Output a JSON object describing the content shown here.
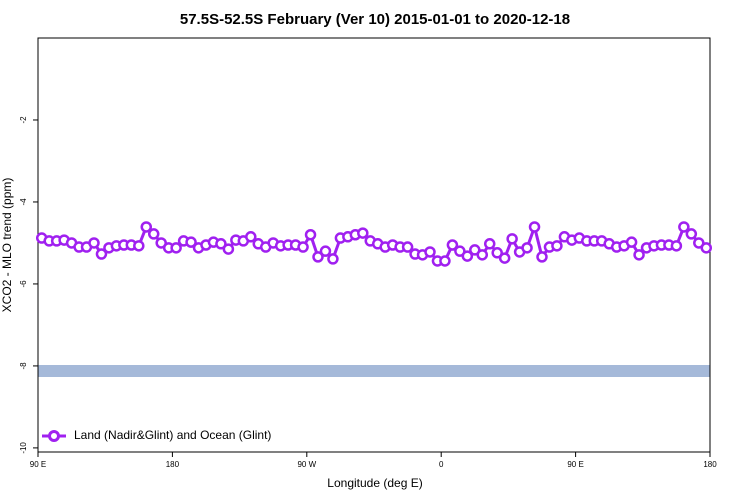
{
  "chart_data": {
    "type": "line",
    "title": "57.5S-52.5S February (Ver 10)   2015-01-01 to 2020-12-18",
    "x_label": "Longitude (deg E)",
    "y_label": "XCO2 - MLO trend (ppm)",
    "xlim": [
      90,
      540
    ],
    "xticks": [
      {
        "value": 90,
        "label": "90 E"
      },
      {
        "value": 180,
        "label": "180"
      },
      {
        "value": 270,
        "label": "90 W"
      },
      {
        "value": 360,
        "label": "0"
      },
      {
        "value": 450,
        "label": "90 E"
      },
      {
        "value": 540,
        "label": "180"
      }
    ],
    "ylim": [
      -10.1,
      0
    ],
    "yticks": [
      -10,
      -8,
      -6,
      -4,
      -2
    ],
    "legend": "bottom-left",
    "x": [
      92.5,
      97.5,
      102.5,
      107.5,
      112.5,
      117.5,
      122.5,
      127.5,
      132.5,
      137.5,
      142.5,
      147.5,
      152.5,
      157.5,
      162.5,
      167.5,
      172.5,
      177.5,
      182.5,
      187.5,
      192.5,
      197.5,
      202.5,
      207.5,
      212.5,
      217.5,
      222.5,
      227.5,
      232.5,
      237.5,
      242.5,
      247.5,
      252.5,
      257.5,
      262.5,
      267.5,
      272.5,
      277.5,
      282.5,
      287.5,
      292.5,
      297.5,
      302.5,
      307.5,
      312.5,
      317.5,
      322.5,
      327.5,
      332.5,
      337.5,
      342.5,
      347.5,
      352.5,
      357.5,
      362.5,
      367.5,
      372.5,
      377.5,
      382.5,
      387.5,
      392.5,
      397.5,
      402.5,
      407.5,
      412.5,
      417.5,
      422.5,
      427.5,
      432.5,
      437.5,
      442.5,
      447.5,
      452.5,
      457.5,
      462.5,
      467.5,
      472.5,
      477.5,
      482.5,
      487.5,
      492.5,
      497.5,
      502.5,
      507.5,
      512.5,
      517.5,
      522.5,
      527.5,
      532.5,
      537.5
    ],
    "series": [
      {
        "name": "Land (Nadir&Glint) and Ocean (Glint)",
        "color": "#a020f0",
        "values": [
          -4.88,
          -4.95,
          -4.95,
          -4.93,
          -5.0,
          -5.1,
          -5.1,
          -5.0,
          -5.27,
          -5.12,
          -5.07,
          -5.05,
          -5.05,
          -5.07,
          -4.61,
          -4.78,
          -5.0,
          -5.12,
          -5.12,
          -4.95,
          -4.98,
          -5.12,
          -5.05,
          -4.98,
          -5.02,
          -5.15,
          -4.93,
          -4.95,
          -4.85,
          -5.02,
          -5.1,
          -5.0,
          -5.07,
          -5.05,
          -5.05,
          -5.1,
          -4.8,
          -5.34,
          -5.2,
          -5.39,
          -4.88,
          -4.85,
          -4.8,
          -4.76,
          -4.95,
          -5.02,
          -5.1,
          -5.05,
          -5.1,
          -5.1,
          -5.27,
          -5.29,
          -5.22,
          -5.44,
          -5.44,
          -5.05,
          -5.2,
          -5.32,
          -5.17,
          -5.29,
          -5.02,
          -5.24,
          -5.37,
          -4.9,
          -5.22,
          -5.12,
          -4.61,
          -5.34,
          -5.1,
          -5.07,
          -4.85,
          -4.93,
          -4.88,
          -4.95,
          -4.95,
          -4.95,
          -5.02,
          -5.1,
          -5.07,
          -4.98,
          -5.29,
          -5.12,
          -5.07,
          -5.05,
          -5.05,
          -5.07,
          -4.61,
          -4.78,
          -5.0,
          -5.12
        ]
      }
    ]
  }
}
